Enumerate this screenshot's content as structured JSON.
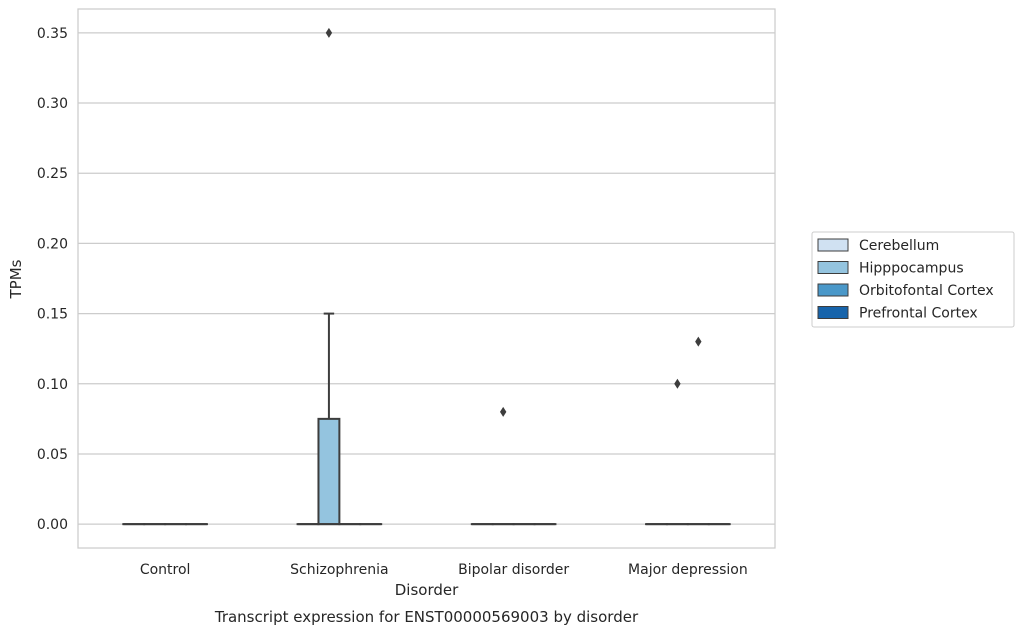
{
  "chart_data": {
    "type": "box",
    "title": "Transcript expression for ENST00000569003 by disorder",
    "xlabel": "Disorder",
    "ylabel": "TPMs",
    "categories": [
      "Control",
      "Schizophrenia",
      "Bipolar disorder",
      "Major depression"
    ],
    "ylim": [
      -0.017,
      0.367
    ],
    "yticks": [
      0.0,
      0.05,
      0.1,
      0.15,
      0.2,
      0.25,
      0.3,
      0.35
    ],
    "ytick_labels": [
      "0.00",
      "0.05",
      "0.10",
      "0.15",
      "0.20",
      "0.25",
      "0.30",
      "0.35"
    ],
    "grid": true,
    "legend_position": "right",
    "series": [
      {
        "name": "Cerebellum",
        "color": "#d0e1f2",
        "boxes": [
          {
            "category": "Control",
            "min": 0,
            "q1": 0,
            "median": 0,
            "q3": 0,
            "max": 0,
            "outliers": []
          },
          {
            "category": "Schizophrenia",
            "min": 0,
            "q1": 0,
            "median": 0,
            "q3": 0,
            "max": 0,
            "outliers": []
          },
          {
            "category": "Bipolar disorder",
            "min": 0,
            "q1": 0,
            "median": 0,
            "q3": 0,
            "max": 0,
            "outliers": []
          },
          {
            "category": "Major depression",
            "min": 0,
            "q1": 0,
            "median": 0,
            "q3": 0,
            "max": 0,
            "outliers": []
          }
        ]
      },
      {
        "name": "Hipppocampus",
        "color": "#94c4df",
        "boxes": [
          {
            "category": "Control",
            "min": 0,
            "q1": 0,
            "median": 0,
            "q3": 0,
            "max": 0,
            "outliers": []
          },
          {
            "category": "Schizophrenia",
            "min": 0,
            "q1": 0,
            "median": 0,
            "q3": 0.075,
            "max": 0.15,
            "outliers": [
              0.35
            ]
          },
          {
            "category": "Bipolar disorder",
            "min": 0,
            "q1": 0,
            "median": 0,
            "q3": 0,
            "max": 0,
            "outliers": [
              0.08
            ]
          },
          {
            "category": "Major depression",
            "min": 0,
            "q1": 0,
            "median": 0,
            "q3": 0,
            "max": 0,
            "outliers": [
              0.1
            ]
          }
        ]
      },
      {
        "name": "Orbitofontal Cortex",
        "color": "#4a98c9",
        "boxes": [
          {
            "category": "Control",
            "min": 0,
            "q1": 0,
            "median": 0,
            "q3": 0,
            "max": 0,
            "outliers": []
          },
          {
            "category": "Schizophrenia",
            "min": 0,
            "q1": 0,
            "median": 0,
            "q3": 0,
            "max": 0,
            "outliers": []
          },
          {
            "category": "Bipolar disorder",
            "min": 0,
            "q1": 0,
            "median": 0,
            "q3": 0,
            "max": 0,
            "outliers": []
          },
          {
            "category": "Major depression",
            "min": 0,
            "q1": 0,
            "median": 0,
            "q3": 0,
            "max": 0,
            "outliers": [
              0.13
            ]
          }
        ]
      },
      {
        "name": "Prefrontal Cortex",
        "color": "#1764ab",
        "boxes": [
          {
            "category": "Control",
            "min": 0,
            "q1": 0,
            "median": 0,
            "q3": 0,
            "max": 0,
            "outliers": []
          },
          {
            "category": "Schizophrenia",
            "min": 0,
            "q1": 0,
            "median": 0,
            "q3": 0,
            "max": 0,
            "outliers": []
          },
          {
            "category": "Bipolar disorder",
            "min": 0,
            "q1": 0,
            "median": 0,
            "q3": 0,
            "max": 0,
            "outliers": []
          },
          {
            "category": "Major depression",
            "min": 0,
            "q1": 0,
            "median": 0,
            "q3": 0,
            "max": 0,
            "outliers": []
          }
        ]
      }
    ]
  }
}
